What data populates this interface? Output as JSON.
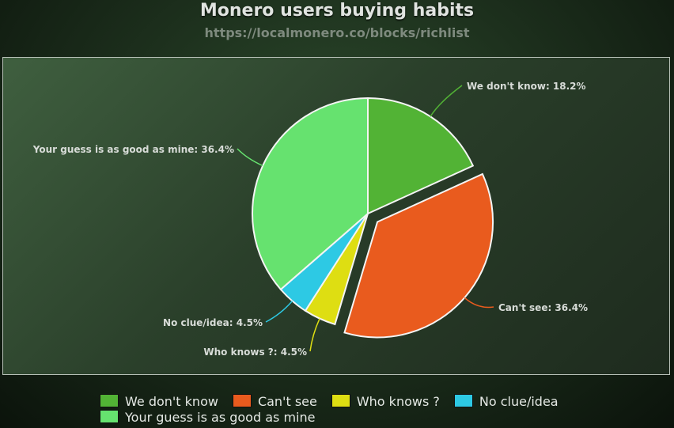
{
  "chart_data": {
    "type": "pie",
    "title": "Monero users buying habits",
    "subtitle": "https://localmonero.co/blocks/richlist",
    "slices": [
      {
        "label": "We don't know",
        "value": 18.2,
        "display": "We don't know: 18.2%",
        "color": "#52b335",
        "exploded": false
      },
      {
        "label": "Can't see",
        "value": 36.4,
        "display": "Can't see: 36.4%",
        "color": "#e95b1e",
        "exploded": true
      },
      {
        "label": "Who knows ?",
        "value": 4.5,
        "display": "Who knows ?: 4.5%",
        "color": "#dede12",
        "exploded": false
      },
      {
        "label": "No clue/idea",
        "value": 4.5,
        "display": "No clue/idea: 4.5%",
        "color": "#2dc9e4",
        "exploded": false
      },
      {
        "label": "Your guess is as good as mine",
        "value": 36.4,
        "display": "Your guess is as good as mine: 36.4%",
        "color": "#66e26f",
        "exploded": false
      }
    ],
    "legend": {
      "placement": "bottom"
    }
  }
}
